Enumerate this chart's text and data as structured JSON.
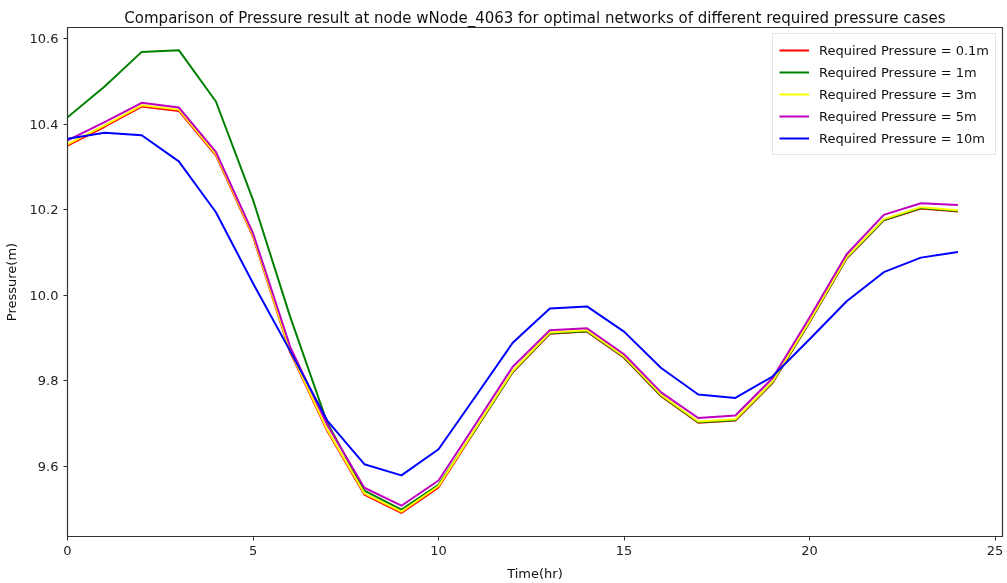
{
  "chart_data": {
    "type": "line",
    "title": "Comparison of Pressure result at node wNode_4063 for optimal networks of different required pressure cases",
    "xlabel": "Time(hr)",
    "ylabel": "Pressure(m)",
    "x": [
      0,
      1,
      2,
      3,
      4,
      5,
      6,
      7,
      8,
      9,
      10,
      11,
      12,
      13,
      14,
      15,
      16,
      17,
      18,
      19,
      20,
      21,
      22,
      23,
      24
    ],
    "series": [
      {
        "name": "Required Pressure = 0.1m",
        "color": "#ff0000",
        "values": [
          10.35,
          10.394,
          10.441,
          10.431,
          10.327,
          10.137,
          9.867,
          9.683,
          9.534,
          9.491,
          9.551,
          9.686,
          9.82,
          9.91,
          9.915,
          9.854,
          9.764,
          9.702,
          9.707,
          9.795,
          9.937,
          10.086,
          10.175,
          10.203,
          10.196
        ]
      },
      {
        "name": "Required Pressure = 1m",
        "color": "#008000",
        "values": [
          10.416,
          10.488,
          10.569,
          10.573,
          10.453,
          10.223,
          9.95,
          9.702,
          9.543,
          9.499,
          9.557,
          9.687,
          9.821,
          9.911,
          9.916,
          9.855,
          9.765,
          9.703,
          9.708,
          9.796,
          9.938,
          10.087,
          10.176,
          10.204,
          10.197
        ]
      },
      {
        "name": "Required Pressure = 3m",
        "color": "#ffff00",
        "values": [
          10.353,
          10.397,
          10.444,
          10.434,
          10.33,
          10.14,
          9.87,
          9.686,
          9.537,
          9.494,
          9.554,
          9.689,
          9.823,
          9.913,
          9.918,
          9.857,
          9.767,
          9.705,
          9.71,
          9.798,
          9.94,
          10.089,
          10.178,
          10.206,
          10.199
        ]
      },
      {
        "name": "Required Pressure = 5m",
        "color": "#bf00bf",
        "values": [
          10.362,
          10.405,
          10.45,
          10.439,
          10.335,
          10.145,
          9.88,
          9.697,
          9.55,
          9.508,
          9.567,
          9.699,
          9.833,
          9.918,
          9.923,
          9.862,
          9.773,
          9.713,
          9.719,
          9.806,
          9.948,
          10.096,
          10.188,
          10.215,
          10.211
        ]
      },
      {
        "name": "Required Pressure = 10m",
        "color": "#0000ff",
        "values": [
          10.366,
          10.38,
          10.374,
          10.313,
          10.194,
          10.028,
          9.87,
          9.707,
          9.605,
          9.579,
          9.64,
          9.764,
          9.889,
          9.969,
          9.974,
          9.915,
          9.83,
          9.768,
          9.76,
          9.81,
          9.897,
          9.986,
          10.054,
          10.088,
          10.101
        ]
      }
    ],
    "xlim": [
      0,
      25.2
    ],
    "ylim": [
      9.436,
      10.626
    ],
    "xticks": [
      0,
      5,
      10,
      15,
      20,
      25
    ],
    "yticks": [
      9.6,
      9.8,
      {
        "value": 10,
        "label": "10.0"
      },
      10.2,
      10.4,
      10.6
    ],
    "grid": false,
    "legend": "top right"
  }
}
